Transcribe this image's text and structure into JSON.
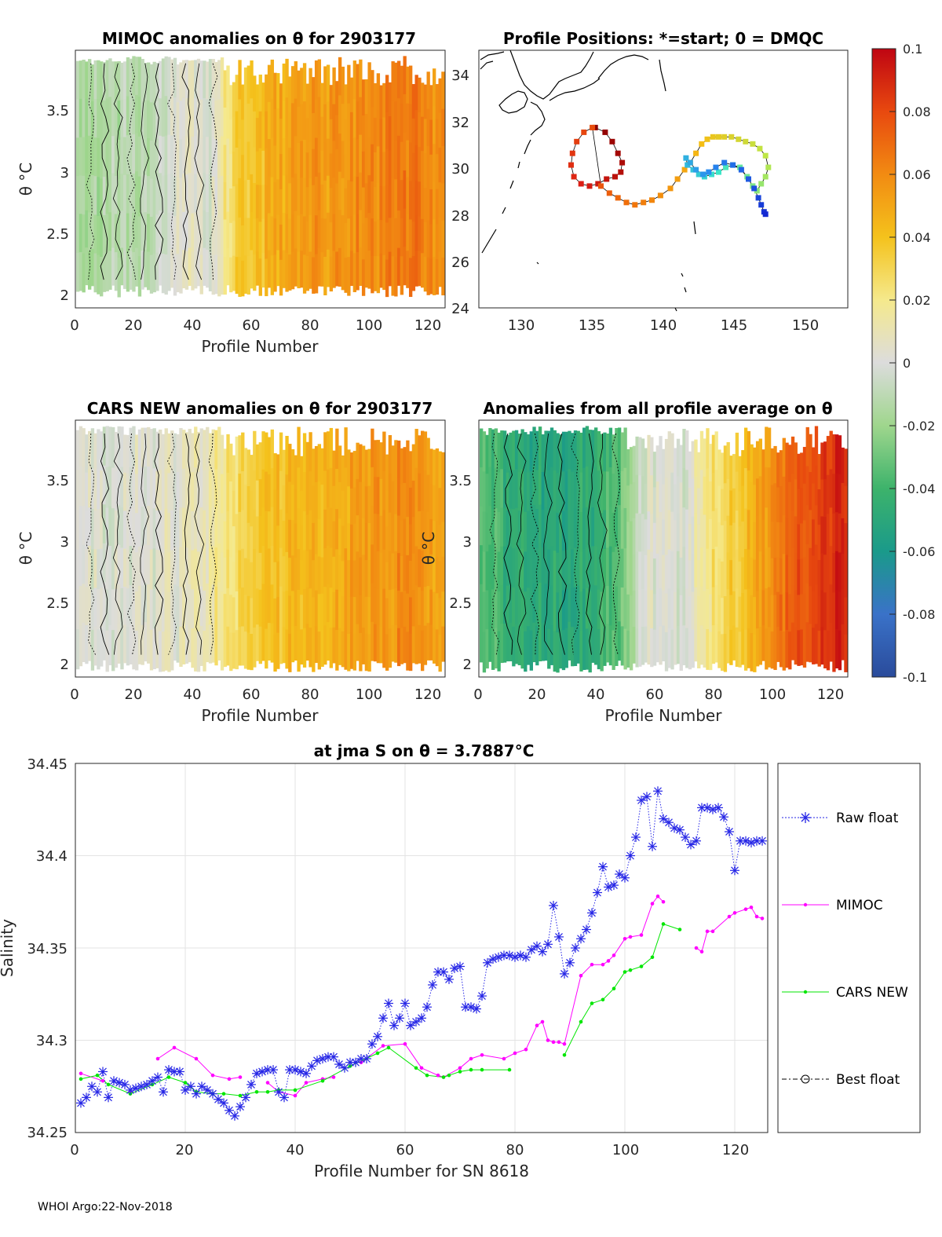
{
  "colorbar": {
    "ticks": [
      "0.1",
      "0.08",
      "0.06",
      "0.04",
      "0.02",
      "0",
      "-0.02",
      "-0.04",
      "-0.06",
      "-0.08",
      "-0.1"
    ]
  },
  "panels": {
    "mimoc": {
      "title": "MIMOC anomalies on θ  for 2903177",
      "xlabel": "Profile Number",
      "ylabel": "θ °C",
      "xticks": [
        "0",
        "20",
        "40",
        "60",
        "80",
        "100",
        "120"
      ],
      "yticks": [
        "3.5",
        "3",
        "2.5",
        "2"
      ]
    },
    "positions": {
      "title": "Profile Positions: *=start; 0 = DMQC",
      "xticks": [
        "130",
        "135",
        "140",
        "145",
        "150"
      ],
      "yticks": [
        "34",
        "32",
        "30",
        "28",
        "26",
        "24"
      ]
    },
    "cars": {
      "title": "CARS NEW anomalies on θ for 2903177",
      "xlabel": "Profile Number",
      "ylabel": "θ °C",
      "xticks": [
        "0",
        "20",
        "40",
        "60",
        "80",
        "100",
        "120"
      ],
      "yticks": [
        "3.5",
        "3",
        "2.5",
        "2"
      ]
    },
    "avg": {
      "title": "Anomalies from all profile average on θ",
      "xlabel": "Profile Number",
      "ylabel": "θ °C",
      "xticks": [
        "0",
        "20",
        "40",
        "60",
        "80",
        "100",
        "120"
      ],
      "yticks": [
        "3.5",
        "3",
        "2.5",
        "2"
      ]
    }
  },
  "salinity": {
    "title": "at jma S on θ = 3.7887°C",
    "xlabel": "Profile Number for SN 8618",
    "ylabel": "Salinity",
    "xticks": [
      "0",
      "20",
      "40",
      "60",
      "80",
      "100",
      "120"
    ],
    "yticks": [
      "34.45",
      "34.4",
      "34.35",
      "34.3",
      "34.25"
    ],
    "legend": [
      "Raw float",
      "MIMOC",
      "CARS NEW",
      "Best float"
    ],
    "colors": {
      "raw": "#2626e6",
      "mimoc": "#ff00ff",
      "cars": "#00e600",
      "best": "#000000"
    }
  },
  "footer": "WHOI Argo:22-Nov-2018",
  "chart_data": [
    {
      "type": "heatmap",
      "title": "MIMOC anomalies on θ  for 2903177",
      "xlabel": "Profile Number",
      "ylabel": "θ °C",
      "xlim": [
        0,
        125
      ],
      "ylim": [
        1.9,
        3.95
      ],
      "clim": [
        -0.1,
        0.1
      ],
      "anomaly_by_profile": {
        "x": [
          0,
          10,
          20,
          30,
          40,
          45,
          55,
          65,
          80,
          100,
          115,
          125
        ],
        "anom": [
          -0.015,
          -0.015,
          -0.012,
          -0.005,
          0.005,
          0.0,
          0.035,
          0.045,
          0.055,
          0.06,
          0.065,
          0.055
        ]
      }
    },
    {
      "type": "scatter",
      "title": "Profile Positions: *=start; 0 = DMQC",
      "xlim": [
        127,
        153
      ],
      "ylim": [
        24,
        35
      ],
      "track": {
        "lon": [
          135.2,
          135.9,
          136.4,
          136.8,
          137.1,
          137.0,
          136.6,
          136.0,
          135.4,
          134.8,
          134.2,
          133.7,
          133.5,
          133.6,
          133.9,
          134.4,
          135.0,
          135.6,
          136.2,
          136.8,
          137.4,
          138.0,
          138.6,
          139.2,
          139.8,
          140.5,
          141.0,
          141.5,
          141.9,
          142.3,
          142.7,
          143.1,
          143.5,
          143.9,
          144.3,
          144.8,
          145.3,
          145.8,
          146.3,
          146.8,
          147.2,
          147.4,
          147.2,
          146.9,
          146.6,
          146.3,
          145.9,
          145.4,
          144.9,
          144.4,
          143.9,
          143.4,
          142.9,
          142.5,
          142.1,
          141.7,
          141.6,
          141.9,
          142.3,
          142.8,
          143.2,
          143.7,
          144.3,
          144.9,
          145.5,
          146.0,
          146.4,
          146.7,
          146.9,
          147.1,
          147.2
        ],
        "lat": [
          31.7,
          31.5,
          31.1,
          30.6,
          30.2,
          29.8,
          29.6,
          29.5,
          29.3,
          29.2,
          29.3,
          29.6,
          30.1,
          30.6,
          31.1,
          31.5,
          31.7,
          29.2,
          28.9,
          28.7,
          28.5,
          28.4,
          28.5,
          28.6,
          28.8,
          29.1,
          29.5,
          29.9,
          30.2,
          30.6,
          31.0,
          31.2,
          31.3,
          31.3,
          31.3,
          31.3,
          31.2,
          31.1,
          31.0,
          30.8,
          30.5,
          30.0,
          29.6,
          29.3,
          29.0,
          29.2,
          29.6,
          30.0,
          30.1,
          30.0,
          29.8,
          29.7,
          29.6,
          29.7,
          29.9,
          30.1,
          30.4,
          30.2,
          29.9,
          29.7,
          29.8,
          30.0,
          30.2,
          30.1,
          29.9,
          29.5,
          29.1,
          28.7,
          28.4,
          28.1,
          28.0
        ]
      }
    },
    {
      "type": "heatmap",
      "title": "CARS NEW anomalies on θ for 2903177",
      "xlabel": "Profile Number",
      "ylabel": "θ °C",
      "xlim": [
        0,
        125
      ],
      "ylim": [
        1.9,
        3.95
      ],
      "clim": [
        -0.1,
        0.1
      ],
      "anomaly_by_profile": {
        "x": [
          0,
          20,
          40,
          50,
          60,
          80,
          100,
          115,
          125
        ],
        "anom": [
          0.0,
          0.0,
          0.005,
          0.02,
          0.035,
          0.045,
          0.055,
          0.06,
          0.045
        ]
      }
    },
    {
      "type": "heatmap",
      "title": "Anomalies from all profile average on θ",
      "xlabel": "Profile Number",
      "ylabel": "θ °C",
      "xlim": [
        0,
        125
      ],
      "ylim": [
        1.9,
        3.95
      ],
      "clim": [
        -0.1,
        0.1
      ],
      "anomaly_by_profile": {
        "x": [
          0,
          10,
          20,
          30,
          40,
          48,
          55,
          70,
          80,
          90,
          100,
          110,
          125
        ],
        "anom": [
          -0.035,
          -0.045,
          -0.05,
          -0.05,
          -0.045,
          -0.03,
          0.0,
          0.0,
          0.025,
          0.04,
          0.06,
          0.08,
          0.09
        ]
      }
    },
    {
      "type": "line",
      "title": "at jma S on θ = 3.7887°C",
      "xlabel": "Profile Number for SN 8618",
      "ylabel": "Salinity",
      "xlim": [
        0,
        126
      ],
      "ylim": [
        34.25,
        34.45
      ],
      "series": [
        {
          "name": "Raw float",
          "x": [
            1,
            2,
            3,
            4,
            5,
            6,
            7,
            8,
            9,
            10,
            11,
            12,
            13,
            14,
            15,
            16,
            17,
            18,
            19,
            20,
            21,
            22,
            23,
            24,
            25,
            26,
            27,
            28,
            29,
            30,
            31,
            32,
            33,
            34,
            35,
            36,
            37,
            38,
            39,
            40,
            41,
            42,
            43,
            44,
            45,
            46,
            47,
            48,
            49,
            50,
            51,
            52,
            53,
            54,
            55,
            56,
            57,
            58,
            59,
            60,
            61,
            62,
            63,
            64,
            65,
            66,
            67,
            68,
            69,
            70,
            71,
            72,
            73,
            74,
            75,
            76,
            77,
            78,
            79,
            80,
            81,
            82,
            83,
            84,
            85,
            86,
            87,
            88,
            89,
            90,
            91,
            92,
            93,
            94,
            95,
            96,
            97,
            98,
            99,
            100,
            101,
            102,
            103,
            104,
            105,
            106,
            107,
            108,
            109,
            110,
            111,
            112,
            113,
            114,
            115,
            116,
            117,
            118,
            119,
            120,
            121,
            122,
            123,
            124,
            125
          ],
          "y": [
            34.266,
            34.269,
            34.275,
            34.272,
            34.283,
            34.269,
            34.278,
            34.277,
            34.276,
            34.273,
            34.274,
            34.275,
            34.276,
            34.278,
            34.28,
            34.272,
            34.284,
            34.283,
            34.283,
            34.273,
            34.275,
            34.271,
            34.275,
            34.273,
            34.271,
            34.268,
            34.266,
            34.262,
            34.259,
            34.264,
            34.269,
            34.276,
            34.282,
            34.283,
            34.284,
            34.284,
            34.272,
            34.269,
            34.284,
            34.284,
            34.283,
            34.282,
            34.286,
            34.289,
            34.29,
            34.291,
            34.291,
            34.287,
            34.285,
            34.288,
            34.288,
            34.29,
            34.29,
            34.298,
            34.302,
            34.312,
            34.32,
            34.308,
            34.312,
            34.32,
            34.308,
            34.31,
            34.312,
            34.318,
            34.33,
            34.337,
            34.337,
            34.333,
            34.339,
            34.34,
            34.318,
            34.318,
            34.317,
            34.324,
            34.342,
            34.344,
            34.345,
            34.346,
            34.346,
            34.345,
            34.346,
            34.345,
            34.349,
            34.351,
            34.348,
            34.352,
            34.373,
            34.356,
            34.336,
            34.342,
            34.35,
            34.355,
            34.36,
            34.369,
            34.38,
            34.394,
            34.383,
            34.384,
            34.39,
            34.388,
            34.4,
            34.41,
            34.43,
            34.432,
            34.405,
            34.435,
            34.42,
            34.418,
            34.415,
            34.414,
            34.41,
            34.406,
            34.408,
            34.426,
            34.426,
            34.425,
            34.426,
            34.421,
            34.413,
            34.392,
            34.408,
            34.408,
            34.407,
            34.408,
            34.408
          ]
        },
        {
          "name": "MIMOC",
          "x": [
            1,
            5,
            10,
            15,
            18,
            22,
            25,
            28,
            30,
            35,
            37,
            40,
            42,
            45,
            47,
            52,
            56,
            60,
            63,
            66,
            67,
            70,
            72,
            74,
            78,
            80,
            82,
            84,
            85,
            86,
            87,
            88,
            89,
            92,
            94,
            96,
            97,
            98,
            100,
            101,
            103,
            105,
            106,
            107,
            113,
            114,
            115,
            116,
            119,
            120,
            122,
            123,
            124,
            125
          ],
          "y": [
            34.282,
            34.278,
            34.272,
            34.29,
            34.296,
            34.29,
            34.281,
            34.279,
            34.28,
            34.277,
            34.272,
            34.27,
            34.277,
            34.279,
            34.28,
            34.288,
            34.297,
            34.298,
            34.285,
            34.281,
            34.28,
            34.285,
            34.29,
            34.292,
            34.29,
            34.293,
            34.295,
            34.308,
            34.31,
            34.3,
            34.299,
            34.299,
            34.298,
            34.335,
            34.341,
            34.341,
            34.343,
            34.346,
            34.355,
            34.356,
            34.357,
            34.374,
            34.378,
            34.375,
            34.35,
            34.348,
            34.359,
            34.359,
            34.367,
            34.369,
            34.371,
            34.372,
            34.367,
            34.366
          ]
        },
        {
          "name": "CARS NEW",
          "x": [
            1,
            4,
            6,
            10,
            14,
            17,
            20,
            22,
            25,
            27,
            30,
            33,
            35,
            37,
            40,
            45,
            50,
            55,
            57,
            62,
            64,
            67,
            68,
            70,
            72,
            74,
            79,
            89,
            92,
            94,
            96,
            98,
            100,
            101,
            103,
            105,
            107,
            110
          ],
          "y": [
            34.279,
            34.281,
            34.276,
            34.271,
            34.276,
            34.28,
            34.277,
            34.272,
            34.271,
            34.271,
            34.27,
            34.272,
            34.272,
            34.273,
            34.273,
            34.278,
            34.286,
            34.293,
            34.296,
            34.285,
            34.281,
            34.28,
            34.281,
            34.283,
            34.284,
            34.284,
            34.284,
            34.292,
            34.31,
            34.32,
            34.322,
            34.328,
            34.337,
            34.338,
            34.34,
            34.345,
            34.363,
            34.36
          ]
        },
        {
          "name": "Best float",
          "x": [],
          "y": []
        }
      ]
    }
  ]
}
